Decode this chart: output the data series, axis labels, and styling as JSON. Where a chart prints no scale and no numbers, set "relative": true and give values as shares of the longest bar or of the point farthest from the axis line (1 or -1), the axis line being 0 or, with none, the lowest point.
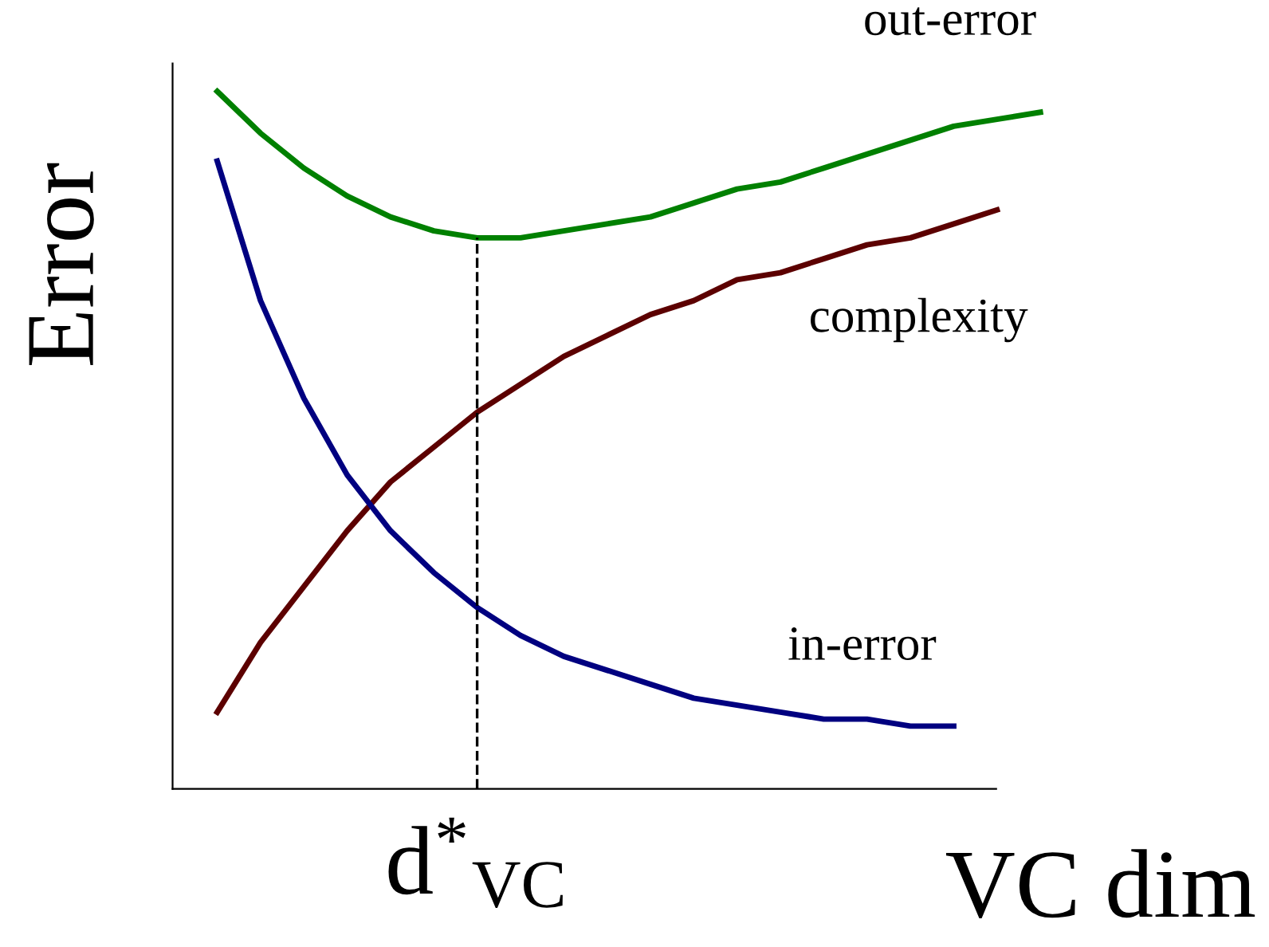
{
  "chart_data": {
    "type": "line",
    "relative": true,
    "xlabel": "VC dim",
    "ylabel": "Error",
    "categories": [
      null,
      null,
      null,
      null,
      null,
      null,
      null,
      null,
      null,
      null,
      null,
      null,
      null,
      null,
      null,
      null,
      null,
      null,
      null,
      null
    ],
    "series": [
      {
        "name": "out-error",
        "color": "#008000",
        "values": [
          1.0,
          0.94,
          0.89,
          0.85,
          0.82,
          0.8,
          0.79,
          0.79,
          0.8,
          0.81,
          0.82,
          0.84,
          0.86,
          0.87,
          0.89,
          0.91,
          0.93,
          0.95,
          0.96,
          0.97
        ]
      },
      {
        "name": "complexity",
        "color": "#5c0000",
        "values": [
          0.11,
          0.21,
          0.29,
          0.37,
          0.44,
          0.49,
          0.54,
          0.58,
          0.62,
          0.65,
          0.68,
          0.7,
          0.73,
          0.74,
          0.76,
          0.78,
          0.79,
          0.81,
          0.83,
          null
        ]
      },
      {
        "name": "in-error",
        "color": "#000080",
        "values": [
          0.9,
          0.7,
          0.56,
          0.45,
          0.37,
          0.31,
          0.26,
          0.22,
          0.19,
          0.17,
          0.15,
          0.13,
          0.12,
          0.11,
          0.1,
          0.1,
          0.09,
          0.09,
          null,
          null
        ]
      }
    ],
    "annotations": [
      "d$^{*}$$_{VC}$"
    ],
    "legend": false,
    "line_style": "solid",
    "marker": "none"
  }
}
